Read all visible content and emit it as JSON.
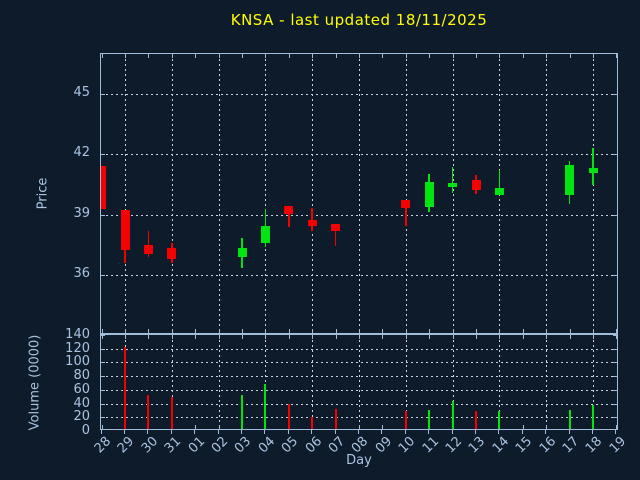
{
  "title": {
    "text": "KNSA - last updated 18/11/2025",
    "color": "#ffff00"
  },
  "axes": {
    "xlabel": "Day",
    "price": {
      "ylabel": "Price"
    },
    "volume": {
      "ylabel": "Volume (0000)"
    }
  },
  "colors": {
    "background": "#0e1b2b",
    "frame": "#9fbcdb",
    "grid": "#c7d1de",
    "tick_label": "#a9c3e0",
    "title": "#ffff00",
    "up": "#00e412",
    "down": "#f40000"
  },
  "chart_data": [
    {
      "type": "candlestick",
      "title": "KNSA - last updated 18/11/2025",
      "xlabel": "Day",
      "ylabel": "Price",
      "ylim": [
        33,
        47
      ],
      "yticks": [
        36,
        39,
        42,
        45
      ],
      "grid": "both-dashed",
      "legend_position": "none",
      "categories": [
        "28",
        "29",
        "30",
        "31",
        "01",
        "02",
        "03",
        "04",
        "05",
        "06",
        "07",
        "08",
        "09",
        "10",
        "11",
        "12",
        "13",
        "14",
        "15",
        "16",
        "17",
        "18",
        "19"
      ],
      "grid_x_days": [
        "29",
        "31",
        "02",
        "04",
        "06",
        "08",
        "10",
        "12",
        "14",
        "16",
        "18"
      ],
      "series": [
        {
          "day": "28",
          "open": 41.4,
          "high": 41.4,
          "low": 39.3,
          "close": 39.3,
          "dir": "down"
        },
        {
          "day": "29",
          "open": 39.25,
          "high": 39.25,
          "low": 36.6,
          "close": 37.25,
          "dir": "down"
        },
        {
          "day": "30",
          "open": 37.5,
          "high": 38.2,
          "low": 36.9,
          "close": 37.05,
          "dir": "down"
        },
        {
          "day": "31",
          "open": 37.35,
          "high": 37.6,
          "low": 36.6,
          "close": 36.8,
          "dir": "down"
        },
        {
          "day": "03",
          "open": 36.9,
          "high": 37.85,
          "low": 36.35,
          "close": 37.35,
          "dir": "up"
        },
        {
          "day": "04",
          "open": 37.6,
          "high": 39.3,
          "low": 37.4,
          "close": 38.45,
          "dir": "up"
        },
        {
          "day": "05",
          "open": 39.45,
          "high": 39.45,
          "low": 38.4,
          "close": 39.05,
          "dir": "down"
        },
        {
          "day": "06",
          "open": 38.75,
          "high": 39.35,
          "low": 38.2,
          "close": 38.45,
          "dir": "down"
        },
        {
          "day": "07",
          "open": 38.55,
          "high": 38.55,
          "low": 37.45,
          "close": 38.2,
          "dir": "down"
        },
        {
          "day": "10",
          "open": 39.75,
          "high": 39.75,
          "low": 38.45,
          "close": 39.35,
          "dir": "down"
        },
        {
          "day": "11",
          "open": 39.4,
          "high": 41.0,
          "low": 39.15,
          "close": 40.6,
          "dir": "up"
        },
        {
          "day": "12",
          "open": 40.35,
          "high": 41.35,
          "low": 40.05,
          "close": 40.55,
          "dir": "up"
        },
        {
          "day": "13",
          "open": 40.7,
          "high": 40.95,
          "low": 40.0,
          "close": 40.2,
          "dir": "down"
        },
        {
          "day": "14",
          "open": 39.95,
          "high": 41.2,
          "low": 39.95,
          "close": 40.3,
          "dir": "up"
        },
        {
          "day": "17",
          "open": 39.95,
          "high": 41.65,
          "low": 39.55,
          "close": 41.45,
          "dir": "up"
        },
        {
          "day": "18",
          "open": 41.05,
          "high": 42.3,
          "low": 40.45,
          "close": 41.3,
          "dir": "up"
        }
      ]
    },
    {
      "type": "bar",
      "xlabel": "Day",
      "ylabel": "Volume (0000)",
      "ylim": [
        0,
        140
      ],
      "yticks": [
        0,
        20,
        40,
        60,
        80,
        100,
        120,
        140
      ],
      "grid_y": [
        20,
        40,
        60,
        80,
        100,
        120
      ],
      "grid": "both-dashed",
      "legend_position": "none",
      "categories": [
        "28",
        "29",
        "30",
        "31",
        "01",
        "02",
        "03",
        "04",
        "05",
        "06",
        "07",
        "08",
        "09",
        "10",
        "11",
        "12",
        "13",
        "14",
        "15",
        "16",
        "17",
        "18",
        "19"
      ],
      "values": [
        {
          "day": "29",
          "volume": 123,
          "dir": "down"
        },
        {
          "day": "30",
          "volume": 52,
          "dir": "down"
        },
        {
          "day": "31",
          "volume": 49,
          "dir": "down"
        },
        {
          "day": "03",
          "volume": 52,
          "dir": "up"
        },
        {
          "day": "04",
          "volume": 69,
          "dir": "up"
        },
        {
          "day": "05",
          "volume": 40,
          "dir": "down"
        },
        {
          "day": "06",
          "volume": 20,
          "dir": "down"
        },
        {
          "day": "07",
          "volume": 32,
          "dir": "down"
        },
        {
          "day": "10",
          "volume": 29,
          "dir": "down"
        },
        {
          "day": "11",
          "volume": 31,
          "dir": "up"
        },
        {
          "day": "12",
          "volume": 44,
          "dir": "up"
        },
        {
          "day": "13",
          "volume": 29,
          "dir": "down"
        },
        {
          "day": "14",
          "volume": 29,
          "dir": "up"
        },
        {
          "day": "17",
          "volume": 31,
          "dir": "up"
        },
        {
          "day": "18",
          "volume": 38,
          "dir": "up"
        }
      ]
    }
  ]
}
